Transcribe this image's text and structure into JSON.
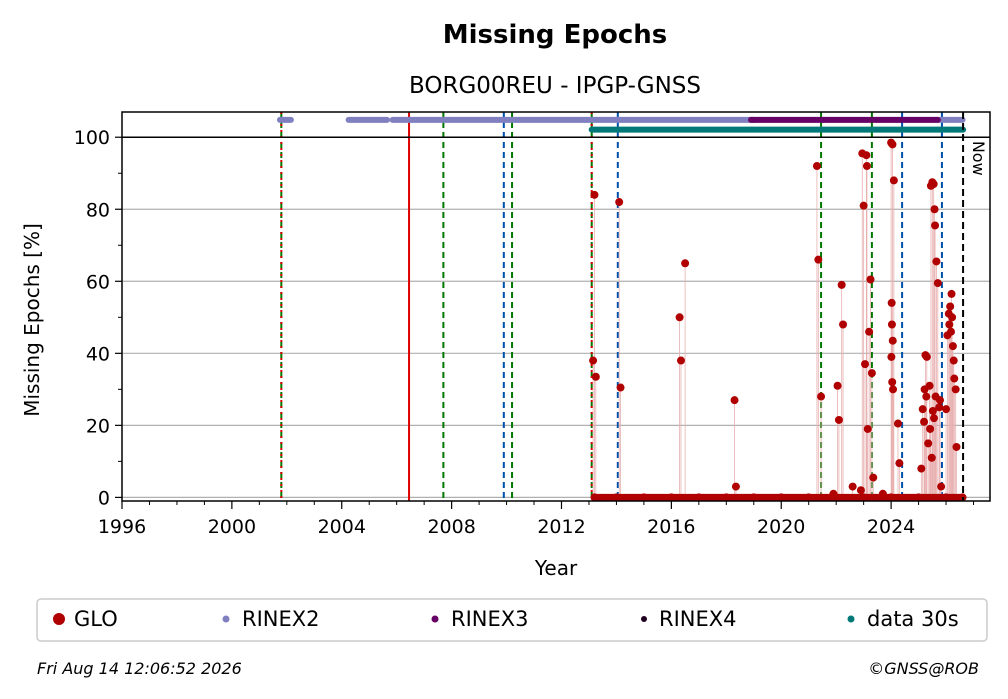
{
  "chart_data": {
    "type": "scatter",
    "title": "Missing Epochs",
    "subtitle": "BORG00REU - IPGP-GNSS",
    "xlabel": "Year",
    "ylabel": "Missing Epochs [%]",
    "xlim": [
      1996.0,
      2027.6
    ],
    "ylim": [
      -1,
      107
    ],
    "x_ticks": [
      1996,
      2000,
      2004,
      2008,
      2012,
      2016,
      2020,
      2024
    ],
    "y_ticks": [
      0,
      20,
      40,
      60,
      80,
      100
    ],
    "grid": "horizontal",
    "now_label": "Now",
    "now_x": 2026.62,
    "colors": {
      "glo": "#b00000",
      "rinex2": "#8080c0",
      "rinex3": "#660066",
      "rinex4": "#220022",
      "data30s": "#007878",
      "red_line": "#dd0000",
      "green_line": "#007700",
      "blue_line": "#0050aa",
      "grid": "#b0b0b0"
    },
    "event_lines": [
      {
        "x": 2001.8,
        "color": "#007700",
        "style": "dashed"
      },
      {
        "x": 2001.8,
        "color": "#dd0000",
        "style": "dotted"
      },
      {
        "x": 2006.45,
        "color": "#dd0000",
        "style": "solid"
      },
      {
        "x": 2007.7,
        "color": "#007700",
        "style": "dashed"
      },
      {
        "x": 2009.9,
        "color": "#0050aa",
        "style": "dashed"
      },
      {
        "x": 2010.2,
        "color": "#007700",
        "style": "dashed"
      },
      {
        "x": 2013.1,
        "color": "#007700",
        "style": "dashed"
      },
      {
        "x": 2013.1,
        "color": "#dd0000",
        "style": "dotted"
      },
      {
        "x": 2014.05,
        "color": "#0050aa",
        "style": "dashed"
      },
      {
        "x": 2021.45,
        "color": "#007700",
        "style": "dashed"
      },
      {
        "x": 2023.3,
        "color": "#007700",
        "style": "dashed"
      },
      {
        "x": 2024.4,
        "color": "#0050aa",
        "style": "dashed"
      },
      {
        "x": 2025.85,
        "color": "#0050aa",
        "style": "dashed"
      }
    ],
    "availability_bars": [
      {
        "series": "RINEX2",
        "y": 104.8,
        "segments": [
          [
            2001.75,
            2002.15
          ],
          [
            2004.25,
            2005.65
          ],
          [
            2005.85,
            2019.0
          ]
        ]
      },
      {
        "series": "RINEX2",
        "y": 104.8,
        "segments": [
          [
            2025.7,
            2026.6
          ]
        ]
      },
      {
        "series": "RINEX3",
        "y": 104.8,
        "segments": [
          [
            2018.9,
            2025.7
          ]
        ]
      },
      {
        "series": "data 30s",
        "y": 102.1,
        "segments": [
          [
            2013.1,
            2026.62
          ]
        ]
      }
    ],
    "series": [
      {
        "name": "GLO",
        "points": [
          [
            2013.15,
            38
          ],
          [
            2013.2,
            84
          ],
          [
            2013.25,
            33.5
          ],
          [
            2014.1,
            82
          ],
          [
            2014.15,
            30.5
          ],
          [
            2016.3,
            50
          ],
          [
            2016.35,
            38
          ],
          [
            2016.5,
            65
          ],
          [
            2018.3,
            27
          ],
          [
            2018.35,
            3
          ],
          [
            2021.3,
            92
          ],
          [
            2021.35,
            66
          ],
          [
            2021.45,
            28
          ],
          [
            2021.9,
            1
          ],
          [
            2022.05,
            31
          ],
          [
            2022.1,
            21.5
          ],
          [
            2022.2,
            59
          ],
          [
            2022.25,
            48
          ],
          [
            2022.6,
            3
          ],
          [
            2022.9,
            2
          ],
          [
            2022.95,
            95.5
          ],
          [
            2023.0,
            81
          ],
          [
            2023.05,
            37
          ],
          [
            2023.1,
            95
          ],
          [
            2023.12,
            92
          ],
          [
            2023.15,
            19
          ],
          [
            2023.2,
            46
          ],
          [
            2023.25,
            60.5
          ],
          [
            2023.3,
            34.5
          ],
          [
            2023.35,
            5.5
          ],
          [
            2023.7,
            1
          ],
          [
            2024.0,
            98.5
          ],
          [
            2024.05,
            98
          ],
          [
            2024.1,
            88
          ],
          [
            2024.02,
            54
          ],
          [
            2024.03,
            48
          ],
          [
            2024.06,
            43.5
          ],
          [
            2024.01,
            39
          ],
          [
            2024.04,
            32
          ],
          [
            2024.07,
            30
          ],
          [
            2024.25,
            20.5
          ],
          [
            2024.3,
            9.5
          ],
          [
            2025.1,
            8
          ],
          [
            2025.15,
            24.5
          ],
          [
            2025.2,
            21
          ],
          [
            2025.25,
            39.5
          ],
          [
            2025.3,
            39
          ],
          [
            2025.22,
            30
          ],
          [
            2025.28,
            28
          ],
          [
            2025.35,
            15
          ],
          [
            2025.4,
            31
          ],
          [
            2025.45,
            86.5
          ],
          [
            2025.5,
            87.5
          ],
          [
            2025.55,
            87
          ],
          [
            2025.58,
            80
          ],
          [
            2025.6,
            75.5
          ],
          [
            2025.65,
            65.5
          ],
          [
            2025.42,
            19
          ],
          [
            2025.48,
            11
          ],
          [
            2025.52,
            24
          ],
          [
            2025.56,
            22
          ],
          [
            2025.62,
            28
          ],
          [
            2025.7,
            59.5
          ],
          [
            2025.75,
            25
          ],
          [
            2025.78,
            27
          ],
          [
            2025.82,
            3
          ],
          [
            2026.0,
            24.5
          ],
          [
            2026.05,
            45
          ],
          [
            2026.1,
            51
          ],
          [
            2026.12,
            48
          ],
          [
            2026.15,
            53
          ],
          [
            2026.18,
            46
          ],
          [
            2026.2,
            56.5
          ],
          [
            2026.22,
            50
          ],
          [
            2026.25,
            42
          ],
          [
            2026.28,
            38
          ],
          [
            2026.3,
            33
          ],
          [
            2026.35,
            30
          ],
          [
            2026.38,
            14
          ],
          [
            2013.2,
            0
          ],
          [
            2014.0,
            0
          ],
          [
            2015.0,
            0
          ],
          [
            2016.0,
            0
          ],
          [
            2017.0,
            0
          ],
          [
            2018.0,
            0
          ],
          [
            2019.0,
            0
          ],
          [
            2020.0,
            0
          ],
          [
            2021.0,
            0
          ],
          [
            2022.0,
            0
          ],
          [
            2023.0,
            0
          ],
          [
            2024.0,
            0
          ],
          [
            2025.0,
            0
          ],
          [
            2026.0,
            0
          ],
          [
            2026.6,
            0
          ]
        ]
      }
    ],
    "legend": [
      "GLO",
      "RINEX2",
      "RINEX3",
      "RINEX4",
      "data 30s"
    ],
    "legend_placement": "bottom"
  },
  "footer": {
    "timestamp": "Fri Aug 14 12:06:52 2026",
    "credit": "©GNSS@ROB"
  }
}
